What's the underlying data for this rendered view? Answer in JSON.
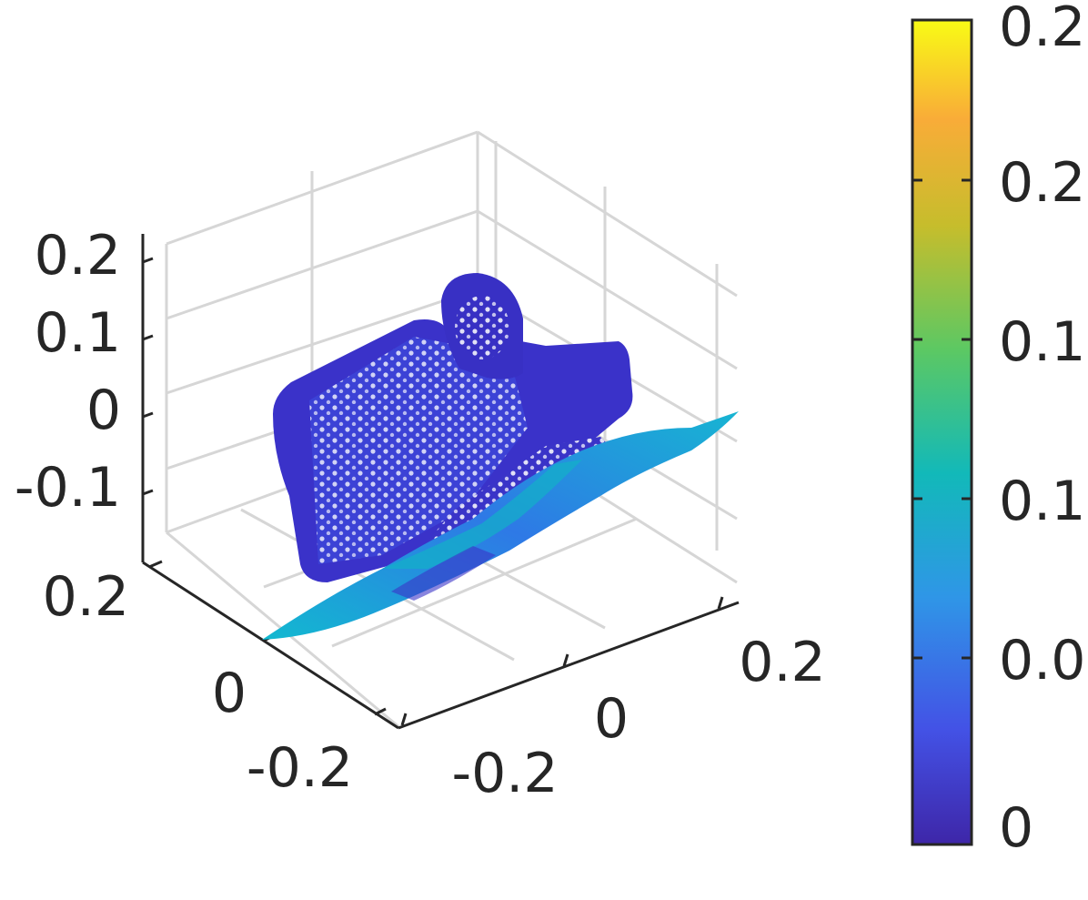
{
  "chart_data": {
    "type": "scatter",
    "title": "",
    "xlabel": "",
    "ylabel": "",
    "zlabel": "",
    "grid": true,
    "view": "3d",
    "axes": {
      "x": {
        "ticks": [
          "-0.2",
          "0",
          "0.2"
        ]
      },
      "y": {
        "ticks": [
          "-0.2",
          "0",
          "0.2"
        ]
      },
      "z": {
        "ticks": [
          "-0.1",
          "0",
          "0.1",
          "0.2"
        ]
      }
    },
    "colorbar": {
      "colormap": "parula",
      "ticks": [
        "0",
        "0.0",
        "0.1",
        "0.1",
        "0.2",
        "0.2"
      ],
      "colors": [
        "#3e26a8",
        "#4352e6",
        "#2f96e7",
        "#12b9b9",
        "#5cc863",
        "#c6bd2c",
        "#f9ac38",
        "#f9fb15"
      ]
    },
    "surface_colors": {
      "object": "#3a32c9",
      "object_light": "#3d4fe0",
      "sheet_low": "#2e79e6",
      "sheet_high": "#17b5d2"
    }
  }
}
